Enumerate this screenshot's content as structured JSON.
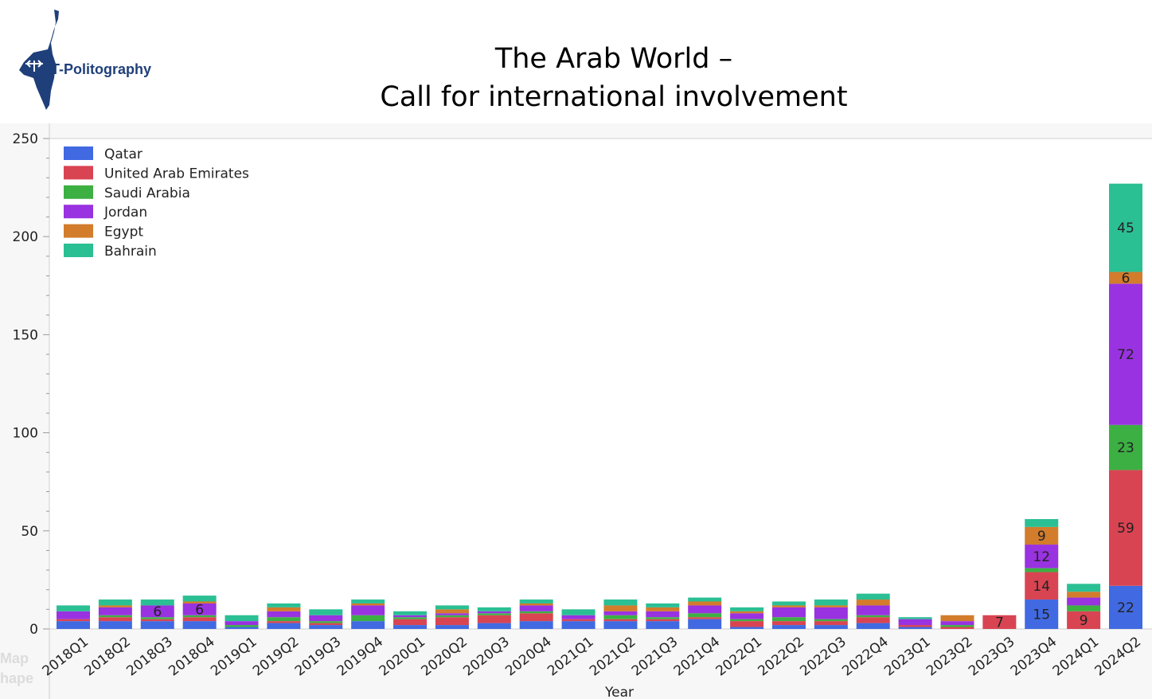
{
  "brand": {
    "name": "T-Politography",
    "logo_icon": "israel-map-logo-icon"
  },
  "title_lines": [
    "The Arab World –",
    "Call for international involvement"
  ],
  "ghost_text": [
    "Map",
    "hape"
  ],
  "colors": {
    "Qatar": "#4169e1",
    "United Arab Emirates": "#d94452",
    "Saudi Arabia": "#3cb043",
    "Jordan": "#9932e0",
    "Egypt": "#d27c2c",
    "Bahrain": "#2bbf94"
  },
  "chart_data": {
    "type": "bar",
    "stacked": true,
    "xlabel": "Year",
    "ylabel": "",
    "ylim": [
      0,
      250
    ],
    "yticks": [
      0,
      50,
      100,
      150,
      200,
      250
    ],
    "grid": false,
    "legend": "top-left",
    "categories": [
      "2018Q1",
      "2018Q2",
      "2018Q3",
      "2018Q4",
      "2019Q1",
      "2019Q2",
      "2019Q3",
      "2019Q4",
      "2020Q1",
      "2020Q2",
      "2020Q3",
      "2020Q4",
      "2021Q1",
      "2021Q2",
      "2021Q3",
      "2021Q4",
      "2022Q1",
      "2022Q2",
      "2022Q3",
      "2022Q4",
      "2023Q1",
      "2023Q2",
      "2023Q3",
      "2023Q4",
      "2024Q1",
      "2024Q2"
    ],
    "series": [
      {
        "name": "Qatar",
        "values": [
          4,
          4,
          4,
          4,
          1,
          3,
          2,
          4,
          2,
          2,
          3,
          4,
          4,
          4,
          4,
          5,
          1,
          2,
          2,
          3,
          1,
          0,
          0,
          15,
          0,
          22
        ]
      },
      {
        "name": "United Arab Emirates",
        "values": [
          1,
          2,
          1,
          2,
          0,
          1,
          1,
          0,
          3,
          4,
          4,
          4,
          1,
          1,
          1,
          1,
          3,
          2,
          2,
          3,
          1,
          1,
          7,
          14,
          9,
          59
        ]
      },
      {
        "name": "Saudi Arabia",
        "values": [
          0,
          1,
          1,
          1,
          1,
          2,
          1,
          3,
          1,
          1,
          1,
          1,
          0,
          2,
          1,
          2,
          1,
          2,
          1,
          1,
          0,
          1,
          0,
          2,
          3,
          23
        ]
      },
      {
        "name": "Jordan",
        "values": [
          4,
          4,
          6,
          6,
          2,
          3,
          3,
          5,
          1,
          1,
          1,
          3,
          2,
          2,
          3,
          4,
          3,
          5,
          6,
          5,
          3,
          2,
          0,
          12,
          4,
          72
        ]
      },
      {
        "name": "Egypt",
        "values": [
          0,
          1,
          0,
          1,
          0,
          2,
          0,
          1,
          0,
          2,
          0,
          1,
          0,
          3,
          2,
          2,
          1,
          1,
          1,
          3,
          0,
          3,
          0,
          9,
          3,
          6
        ]
      },
      {
        "name": "Bahrain",
        "values": [
          3,
          3,
          3,
          3,
          3,
          2,
          3,
          2,
          2,
          2,
          2,
          2,
          3,
          3,
          2,
          2,
          2,
          2,
          3,
          3,
          1,
          0,
          0,
          4,
          4,
          45
        ]
      }
    ],
    "data_labels": [
      {
        "category": "2018Q3",
        "series": "Jordan",
        "text": "6"
      },
      {
        "category": "2018Q4",
        "series": "Jordan",
        "text": "6"
      },
      {
        "category": "2023Q3",
        "series": "United Arab Emirates",
        "text": "7"
      },
      {
        "category": "2023Q4",
        "series": "Qatar",
        "text": "15"
      },
      {
        "category": "2023Q4",
        "series": "United Arab Emirates",
        "text": "14"
      },
      {
        "category": "2023Q4",
        "series": "Jordan",
        "text": "12"
      },
      {
        "category": "2023Q4",
        "series": "Egypt",
        "text": "9"
      },
      {
        "category": "2024Q1",
        "series": "United Arab Emirates",
        "text": "9"
      },
      {
        "category": "2024Q2",
        "series": "Qatar",
        "text": "22"
      },
      {
        "category": "2024Q2",
        "series": "United Arab Emirates",
        "text": "59"
      },
      {
        "category": "2024Q2",
        "series": "Saudi Arabia",
        "text": "23"
      },
      {
        "category": "2024Q2",
        "series": "Jordan",
        "text": "72"
      },
      {
        "category": "2024Q2",
        "series": "Egypt",
        "text": "6"
      },
      {
        "category": "2024Q2",
        "series": "Bahrain",
        "text": "45"
      }
    ]
  }
}
